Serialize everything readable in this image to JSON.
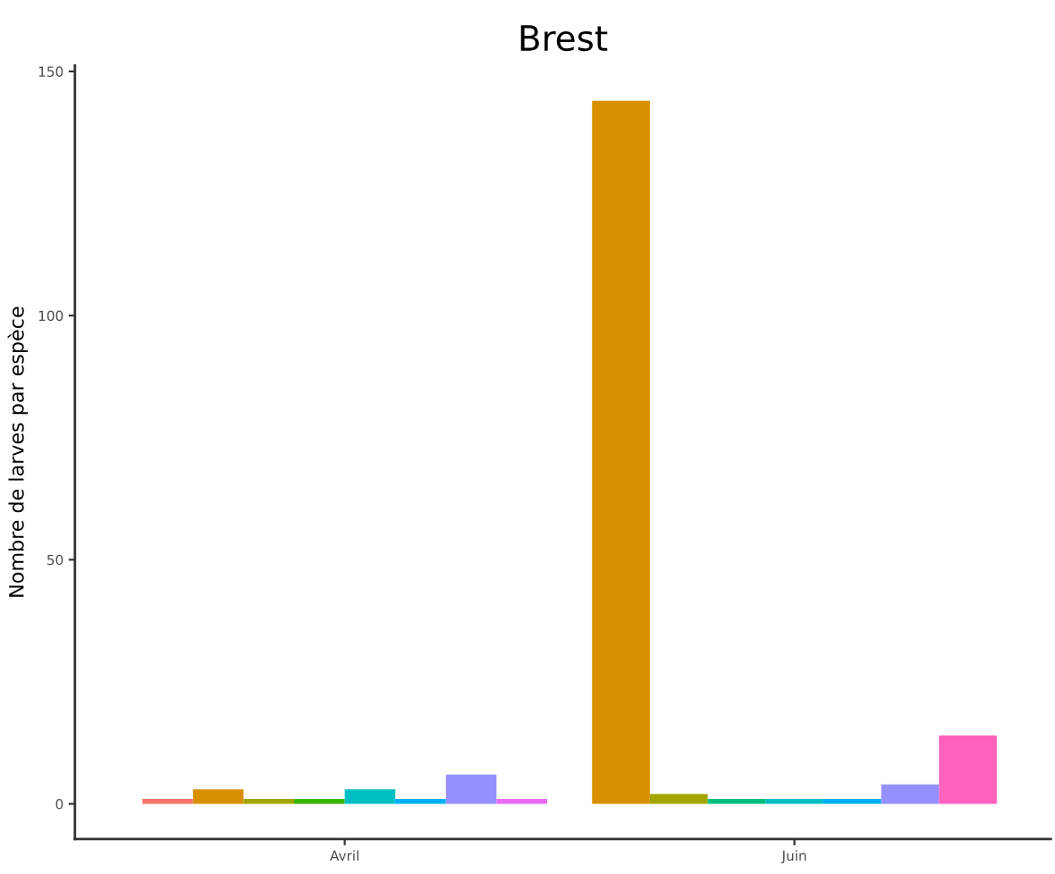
{
  "chart_data": {
    "type": "bar",
    "title": "Brest",
    "ylabel": "Nombre de larves par espèce",
    "categories": [
      "Avril",
      "Juin"
    ],
    "series": [
      {
        "color": "#f8766d",
        "values": [
          1,
          null
        ]
      },
      {
        "color": "#d89000",
        "values": [
          3,
          144
        ]
      },
      {
        "color": "#a3a500",
        "values": [
          1,
          2
        ]
      },
      {
        "color": "#39b600",
        "values": [
          1,
          null
        ]
      },
      {
        "color": "#00bf7d",
        "values": [
          null,
          1
        ]
      },
      {
        "color": "#00bfc4",
        "values": [
          3,
          1
        ]
      },
      {
        "color": "#00b0f6",
        "values": [
          1,
          1
        ]
      },
      {
        "color": "#9590ff",
        "values": [
          6,
          4
        ]
      },
      {
        "color": "#e76bf3",
        "values": [
          1,
          null
        ]
      },
      {
        "color": "#ff62bc",
        "values": [
          null,
          14
        ]
      }
    ],
    "ylim": [
      -7.2,
      151.2
    ],
    "yticks": [
      0,
      50,
      100,
      150
    ]
  }
}
